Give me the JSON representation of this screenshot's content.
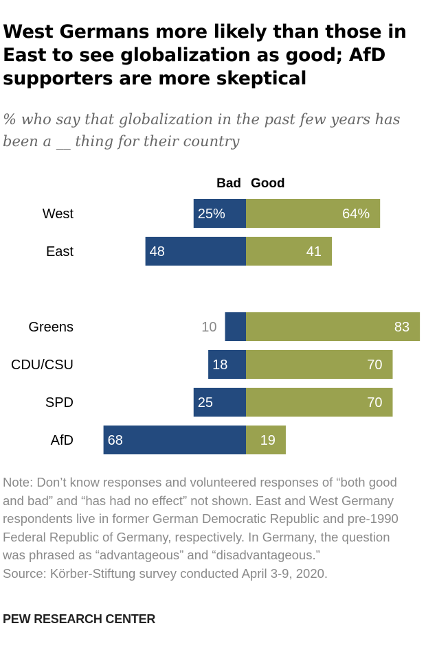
{
  "title": "West Germans more likely than those in East to see globalization as good; AfD supporters are more skeptical",
  "subtitle": "% who say that globalization in the past few years has been a __ thing for their country",
  "note": "Note: Don’t know responses and volunteered responses of “both good and bad” and “has had no effect” not shown. East and West Germany respondents live in former German Democratic Republic and pre-1990 Federal Republic of Germany, respectively. In Germany, the question was phrased as “advantageous” and “disadvantageous.”",
  "source": "Source: Körber-Stiftung survey conducted April 3-9, 2020.",
  "logo": "PEW RESEARCH CENTER",
  "colors": {
    "bad": "#234a7e",
    "good": "#9aa24f",
    "label_light": "#ffffff",
    "label_outside": "#8a8a8a"
  },
  "chart_data": {
    "type": "bar",
    "orientation": "horizontal-diverging",
    "series": [
      {
        "name": "Bad"
      },
      {
        "name": "Good"
      }
    ],
    "groups": [
      {
        "rows": [
          {
            "category": "West",
            "bad": 25,
            "good": 64,
            "bad_label": "25%",
            "good_label": "64%"
          },
          {
            "category": "East",
            "bad": 48,
            "good": 41,
            "bad_label": "48",
            "good_label": "41"
          }
        ]
      },
      {
        "rows": [
          {
            "category": "Greens",
            "bad": 10,
            "good": 83,
            "bad_label": "10",
            "good_label": "83"
          },
          {
            "category": "CDU/CSU",
            "bad": 18,
            "good": 70,
            "bad_label": "18",
            "good_label": "70"
          },
          {
            "category": "SPD",
            "bad": 25,
            "good": 70,
            "bad_label": "25",
            "good_label": "70"
          },
          {
            "category": "AfD",
            "bad": 68,
            "good": 19,
            "bad_label": "68",
            "good_label": "19"
          }
        ]
      }
    ],
    "grid": false
  }
}
